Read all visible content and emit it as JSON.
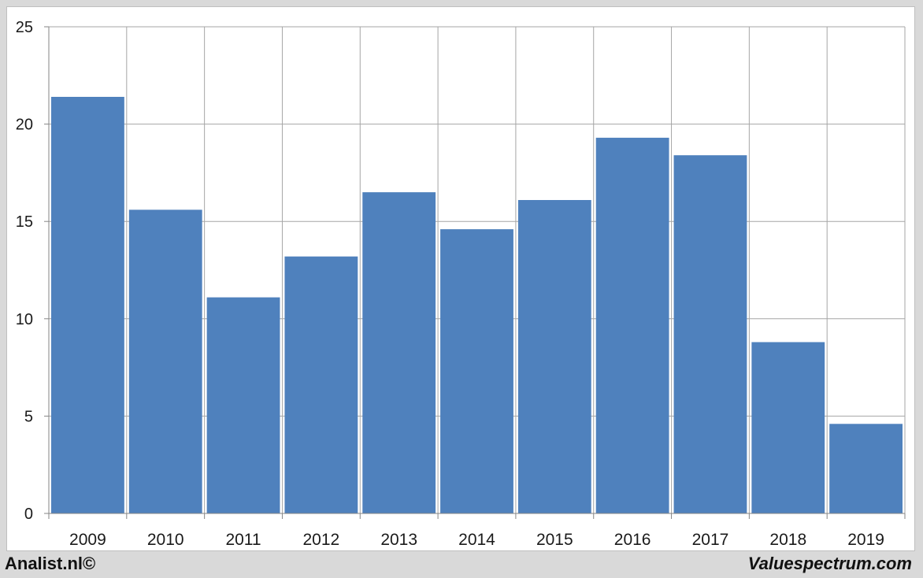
{
  "colors": {
    "bar": "#4f81bd",
    "grid": "#a6a6a6",
    "axis": "#868686",
    "text": "#1a1a1a"
  },
  "chart_data": {
    "type": "bar",
    "title": "",
    "xlabel": "",
    "ylabel": "",
    "categories": [
      "2009",
      "2010",
      "2011",
      "2012",
      "2013",
      "2014",
      "2015",
      "2016",
      "2017",
      "2018",
      "2019"
    ],
    "values": [
      21.4,
      15.6,
      11.1,
      13.2,
      16.5,
      14.6,
      16.1,
      19.3,
      18.4,
      8.8,
      4.6
    ],
    "ylim": [
      0,
      25
    ],
    "yticks": [
      0,
      5,
      10,
      15,
      20,
      25
    ],
    "ytick_labels": [
      "0",
      "5",
      "10",
      "15",
      "20",
      "25"
    ],
    "grid": true,
    "legend": "none"
  },
  "footer": {
    "left": "Analist.nl©",
    "right": "Valuespectrum.com"
  }
}
